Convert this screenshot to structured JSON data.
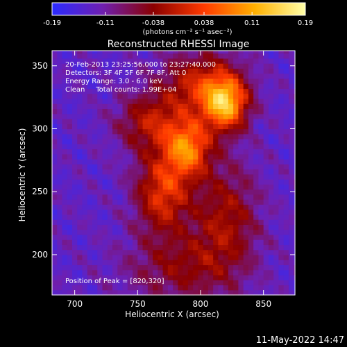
{
  "chart_data": {
    "type": "heatmap",
    "title": "Reconstructed RHESSI Image",
    "xlabel": "Heliocentric X (arcsec)",
    "ylabel": "Heliocentric Y (arcsec)",
    "xlim": [
      682,
      875
    ],
    "ylim": [
      168,
      362
    ],
    "x_ticks": [
      700,
      750,
      800,
      850
    ],
    "y_ticks": [
      200,
      250,
      300,
      350
    ],
    "colorbar": {
      "range": [
        -0.19,
        0.19
      ],
      "tick_values": [
        -0.19,
        -0.11,
        -0.038,
        0.038,
        0.11,
        0.19
      ],
      "tick_labels": [
        "-0.19",
        "-0.11",
        "-0.038",
        "0.038",
        "0.11",
        "0.19"
      ],
      "unit_label": "(photons cm⁻² s⁻¹ asec⁻²)",
      "colormap": [
        "#2b2bff",
        "#6f1fb0",
        "#8a0000",
        "#ff3a00",
        "#ffb000",
        "#ffffa8"
      ]
    },
    "annotations": [
      "20-Feb-2013 23:25:56.000 to 23:27:40.000",
      "Detectors: 3F 4F 5F 6F 7F 8F, Att 0",
      "Energy Range: 3.0 - 6.0 keV",
      "Clean     Total counts: 1.99E+04"
    ],
    "peak_label": "Position of Peak = [820,320]",
    "peak": {
      "x": 820,
      "y": 320,
      "value": 0.19
    },
    "sources": [
      {
        "x": 820,
        "y": 320,
        "sigma_x": 12,
        "sigma_y": 15,
        "amplitude": 0.19
      },
      {
        "x": 790,
        "y": 285,
        "sigma_x": 13,
        "sigma_y": 16,
        "amplitude": 0.16
      },
      {
        "x": 770,
        "y": 250,
        "sigma_x": 15,
        "sigma_y": 22,
        "amplitude": 0.12
      },
      {
        "x": 800,
        "y": 335,
        "sigma_x": 22,
        "sigma_y": 18,
        "amplitude": 0.1
      },
      {
        "x": 760,
        "y": 305,
        "sigma_x": 18,
        "sigma_y": 16,
        "amplitude": 0.08
      },
      {
        "x": 820,
        "y": 230,
        "sigma_x": 18,
        "sigma_y": 30,
        "amplitude": 0.07
      },
      {
        "x": 785,
        "y": 190,
        "sigma_x": 30,
        "sigma_y": 20,
        "amplitude": 0.05
      }
    ],
    "background_level": -0.13,
    "grid": false
  },
  "timestamp": "11-May-2022 14:47"
}
